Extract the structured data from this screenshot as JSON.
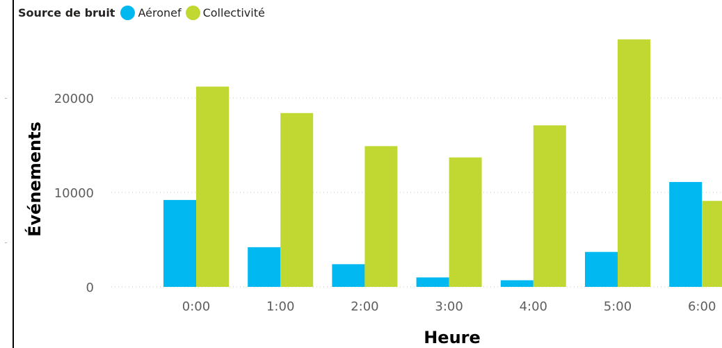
{
  "chart_data": {
    "type": "bar",
    "title": "",
    "legend_title": "Source de bruit",
    "xlabel": "Heure",
    "ylabel": "Événements",
    "categories": [
      "0:00",
      "1:00",
      "2:00",
      "3:00",
      "4:00",
      "5:00",
      "6:00"
    ],
    "series": [
      {
        "name": "Aéronef",
        "color": "#01b8f0",
        "values": [
          9200,
          4200,
          2400,
          1000,
          700,
          3700,
          11100
        ]
      },
      {
        "name": "Collectivité",
        "color": "#c0d831",
        "values": [
          21200,
          18400,
          14900,
          13700,
          17100,
          26200,
          9100
        ]
      }
    ],
    "yticks": [
      0,
      10000,
      20000
    ],
    "ytick_labels": [
      "0",
      "10000",
      "20000"
    ],
    "ylim": [
      0,
      28000
    ],
    "grid": true,
    "legend_position": "top-left"
  }
}
